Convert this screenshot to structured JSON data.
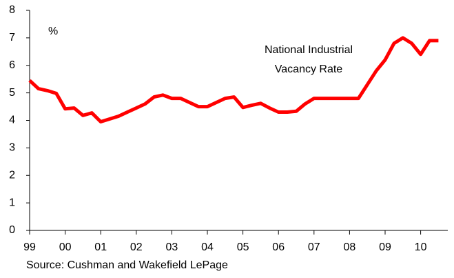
{
  "chart_data": {
    "type": "line",
    "annotations": [
      "%",
      "National Industrial",
      "Vacancy Rate"
    ],
    "source": "Source: Cushman and Wakefield LePage",
    "categories": [
      "99",
      null,
      null,
      null,
      "00",
      null,
      null,
      null,
      "01",
      null,
      null,
      null,
      "02",
      null,
      null,
      null,
      "03",
      null,
      null,
      null,
      "04",
      null,
      null,
      null,
      "05",
      null,
      null,
      null,
      "06",
      null,
      null,
      null,
      "07",
      null,
      null,
      null,
      "08",
      null,
      null,
      null,
      "09",
      null,
      null,
      null,
      "10",
      null,
      null
    ],
    "values": [
      5.45,
      5.15,
      5.08,
      4.98,
      4.42,
      4.45,
      4.18,
      4.27,
      3.95,
      4.05,
      4.15,
      4.3,
      4.45,
      4.6,
      4.85,
      4.92,
      4.8,
      4.8,
      4.65,
      4.5,
      4.5,
      4.65,
      4.8,
      4.85,
      4.47,
      4.55,
      4.62,
      4.45,
      4.3,
      4.3,
      4.33,
      4.6,
      4.8,
      4.8,
      4.8,
      4.8,
      4.8,
      4.8,
      5.3,
      5.8,
      6.2,
      6.8,
      7.0,
      6.8,
      6.4,
      6.9,
      6.9
    ],
    "color": "#ff0000",
    "ylim": [
      0,
      8
    ],
    "yticks": [
      0,
      1,
      2,
      3,
      4,
      5,
      6,
      7,
      8
    ],
    "grid": false
  }
}
